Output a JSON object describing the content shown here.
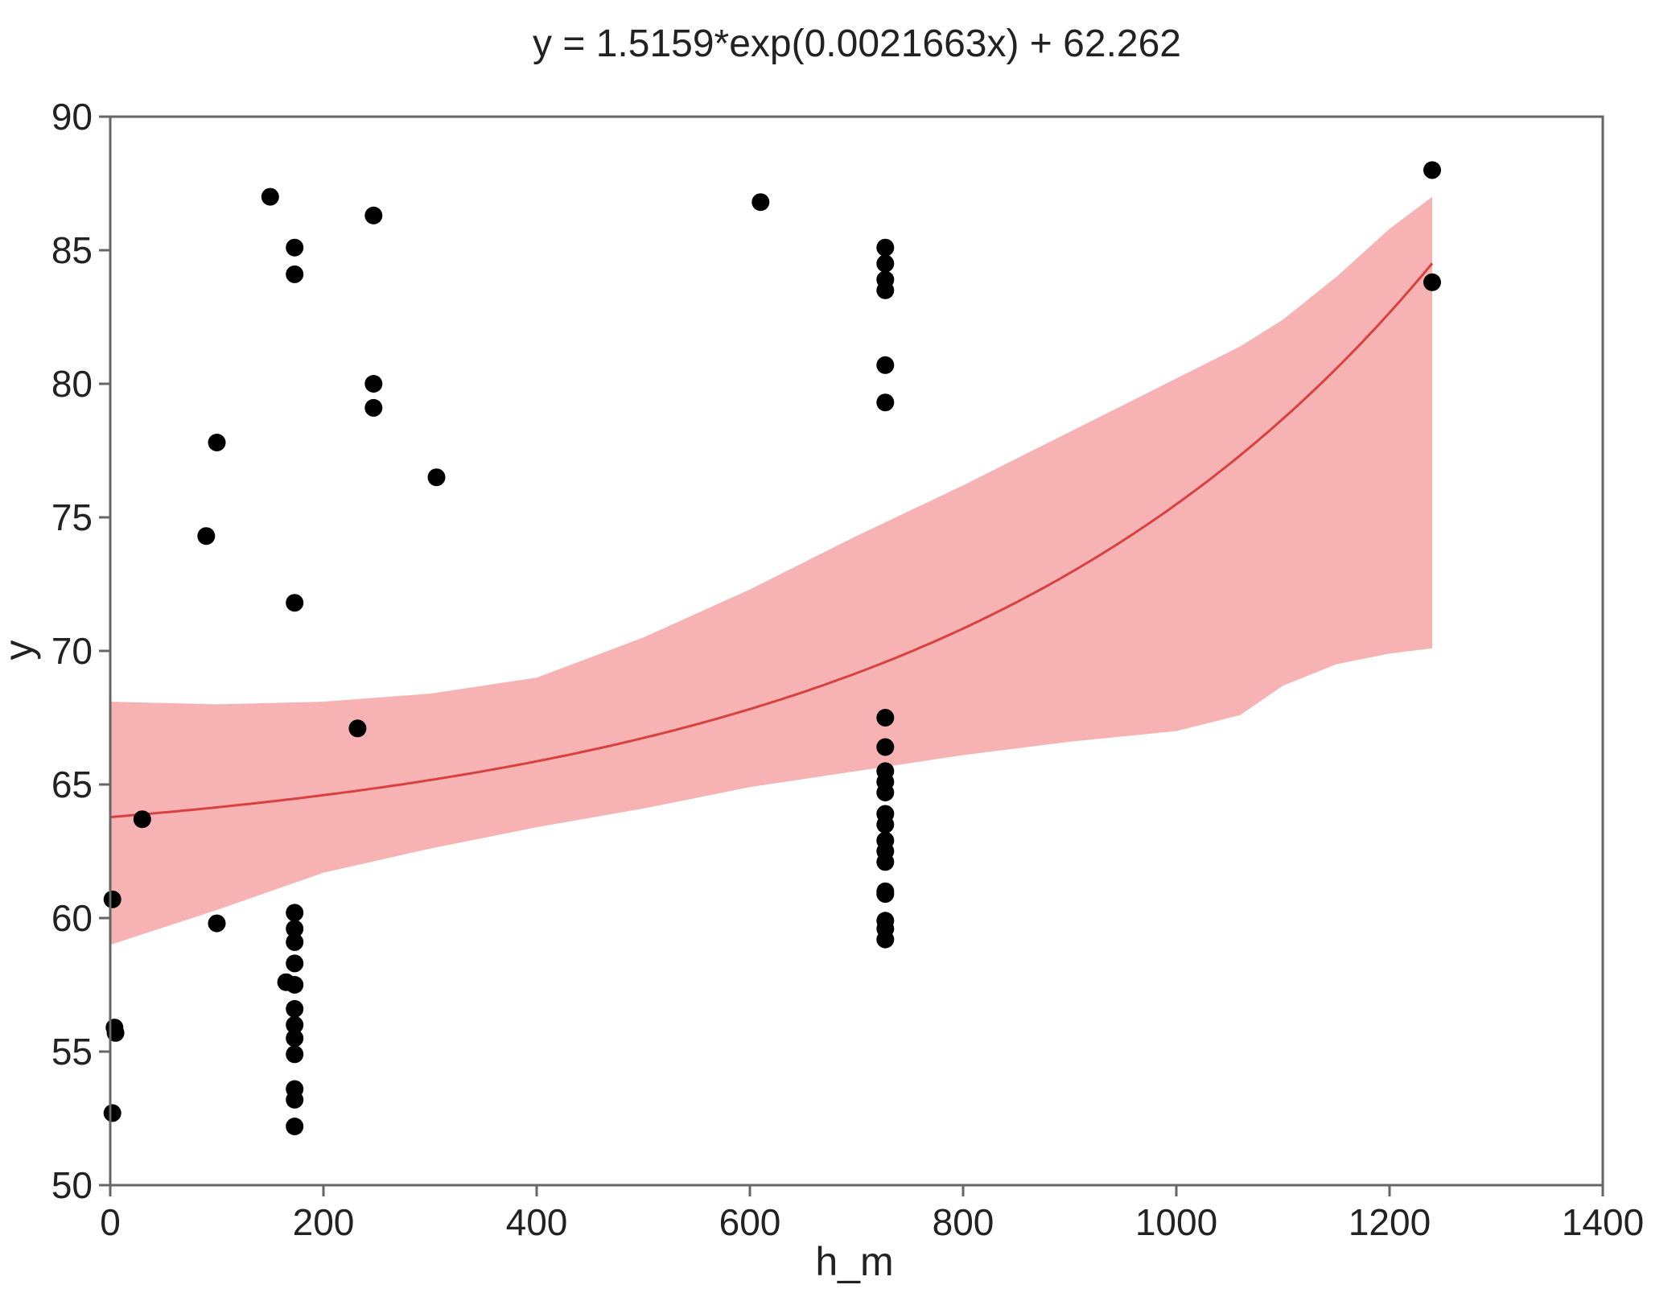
{
  "chart_data": {
    "type": "scatter",
    "title": "y = 1.5159*exp(0.0021663x) + 62.262",
    "xlabel": "h_m",
    "ylabel": "y",
    "xlim": [
      0,
      1400
    ],
    "ylim": [
      50,
      90
    ],
    "xticks": [
      0,
      200,
      400,
      600,
      800,
      1000,
      1200,
      1400
    ],
    "yticks": [
      50,
      55,
      60,
      65,
      70,
      75,
      80,
      85,
      90
    ],
    "grid": false,
    "colors": {
      "points": "#000000",
      "fit_line": "#d94040",
      "band": "#f7b3b3",
      "axis": "#666666"
    },
    "fit": {
      "a": 1.5159,
      "b": 0.0021663,
      "c": 62.262,
      "x_range": [
        0,
        1240
      ]
    },
    "confidence_band": {
      "x": [
        0,
        100,
        200,
        300,
        400,
        500,
        600,
        700,
        800,
        900,
        1000,
        1060,
        1100,
        1150,
        1200,
        1240
      ],
      "upper": [
        68.1,
        68.0,
        68.1,
        68.4,
        69.0,
        70.5,
        72.3,
        74.3,
        76.2,
        78.2,
        80.2,
        81.4,
        82.4,
        84.0,
        85.8,
        87.0
      ],
      "lower": [
        59.0,
        60.3,
        61.7,
        62.6,
        63.4,
        64.1,
        64.9,
        65.5,
        66.1,
        66.6,
        67.0,
        67.6,
        68.7,
        69.5,
        69.9,
        70.1
      ]
    },
    "points": [
      {
        "x": 2,
        "y": 60.7
      },
      {
        "x": 4,
        "y": 55.9
      },
      {
        "x": 5,
        "y": 55.7
      },
      {
        "x": 2,
        "y": 52.7
      },
      {
        "x": 30,
        "y": 63.7
      },
      {
        "x": 90,
        "y": 74.3
      },
      {
        "x": 100,
        "y": 77.8
      },
      {
        "x": 100,
        "y": 59.8
      },
      {
        "x": 150,
        "y": 87.0
      },
      {
        "x": 165,
        "y": 57.6
      },
      {
        "x": 173,
        "y": 85.1
      },
      {
        "x": 173,
        "y": 84.1
      },
      {
        "x": 173,
        "y": 71.8
      },
      {
        "x": 173,
        "y": 60.2
      },
      {
        "x": 173,
        "y": 59.6
      },
      {
        "x": 173,
        "y": 59.1
      },
      {
        "x": 173,
        "y": 58.3
      },
      {
        "x": 173,
        "y": 57.5
      },
      {
        "x": 173,
        "y": 56.6
      },
      {
        "x": 173,
        "y": 56.0
      },
      {
        "x": 173,
        "y": 55.5
      },
      {
        "x": 173,
        "y": 54.9
      },
      {
        "x": 173,
        "y": 53.6
      },
      {
        "x": 173,
        "y": 53.2
      },
      {
        "x": 173,
        "y": 52.2
      },
      {
        "x": 232,
        "y": 67.1
      },
      {
        "x": 247,
        "y": 86.3
      },
      {
        "x": 247,
        "y": 80.0
      },
      {
        "x": 247,
        "y": 79.1
      },
      {
        "x": 306,
        "y": 76.5
      },
      {
        "x": 610,
        "y": 86.8
      },
      {
        "x": 727,
        "y": 85.1
      },
      {
        "x": 727,
        "y": 84.5
      },
      {
        "x": 727,
        "y": 83.9
      },
      {
        "x": 727,
        "y": 83.5
      },
      {
        "x": 727,
        "y": 80.7
      },
      {
        "x": 727,
        "y": 79.3
      },
      {
        "x": 727,
        "y": 67.5
      },
      {
        "x": 727,
        "y": 66.4
      },
      {
        "x": 727,
        "y": 65.5
      },
      {
        "x": 727,
        "y": 65.1
      },
      {
        "x": 727,
        "y": 64.7
      },
      {
        "x": 727,
        "y": 63.9
      },
      {
        "x": 727,
        "y": 63.5
      },
      {
        "x": 727,
        "y": 62.9
      },
      {
        "x": 727,
        "y": 62.5
      },
      {
        "x": 727,
        "y": 62.1
      },
      {
        "x": 727,
        "y": 61.0
      },
      {
        "x": 727,
        "y": 60.9
      },
      {
        "x": 727,
        "y": 59.9
      },
      {
        "x": 727,
        "y": 59.6
      },
      {
        "x": 727,
        "y": 59.2
      },
      {
        "x": 1240,
        "y": 88.0
      },
      {
        "x": 1240,
        "y": 83.8
      }
    ]
  }
}
